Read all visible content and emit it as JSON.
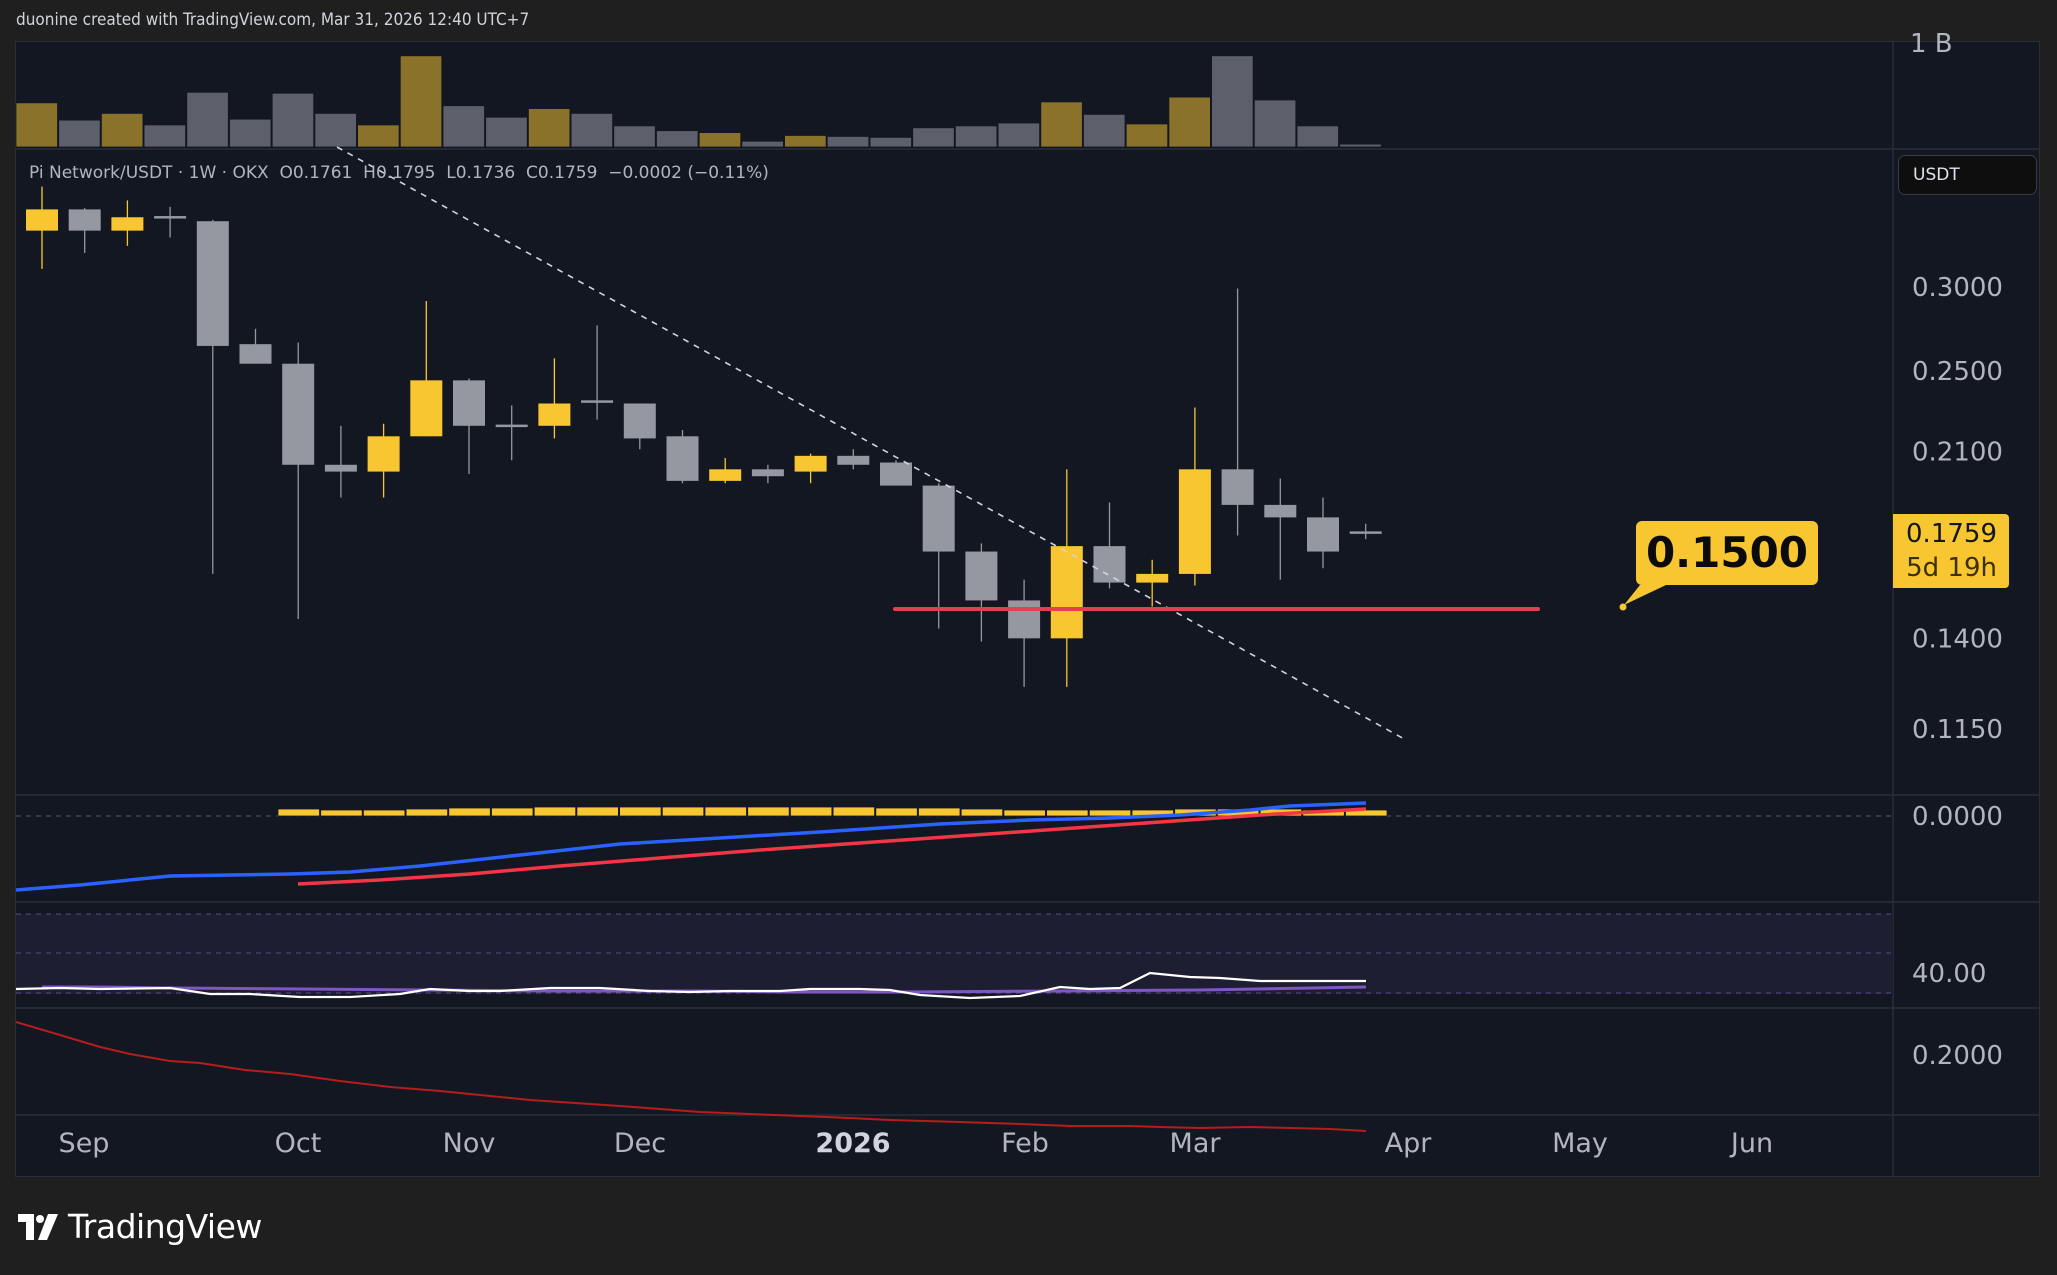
{
  "header": {
    "attribution": "duonine created with TradingView.com, Mar 31, 2026 12:40 UTC+7"
  },
  "legend": {
    "symbol": "Pi Network/USDT",
    "interval": "1W",
    "exchange": "OKX",
    "open": "O0.1761",
    "high": "H0.1795",
    "low": "L0.1736",
    "close": "C0.1759",
    "change": "−0.0002 (−0.11%)"
  },
  "currency_button": "USDT",
  "last_price": {
    "value": "0.1759",
    "countdown": "5d 19h"
  },
  "callout": {
    "text": "0.1500"
  },
  "volume_axis_label": "1 B",
  "price_axis": [
    "0.3000",
    "0.2500",
    "0.2100",
    "0.1400",
    "0.1150"
  ],
  "macd_axis": "0.0000",
  "rsi_axis": "40.00",
  "bottom_axis": "0.2000",
  "time_axis": [
    {
      "label": "Sep",
      "bold": false
    },
    {
      "label": "Oct",
      "bold": false
    },
    {
      "label": "Nov",
      "bold": false
    },
    {
      "label": "Dec",
      "bold": false
    },
    {
      "label": "2026",
      "bold": true
    },
    {
      "label": "Feb",
      "bold": false
    },
    {
      "label": "Mar",
      "bold": false
    },
    {
      "label": "Apr",
      "bold": false
    },
    {
      "label": "May",
      "bold": false
    },
    {
      "label": "Jun",
      "bold": false
    }
  ],
  "logo": "TradingView",
  "colors": {
    "up": "#f7c631",
    "down": "#9598a1",
    "up_volume": "#8a722a",
    "down_volume": "#5d606b",
    "background": "#131722",
    "support_line": "#e0404f",
    "macd_line": "#2962ff",
    "signal_line": "#f23645",
    "rsi_line": "#ffffff",
    "rsi_ma": "#7e57c2",
    "bottom_line": "#b71c1c"
  },
  "chart_data": {
    "type": "candlestick",
    "title": "Pi Network/USDT · 1W · OKX",
    "xlabel": "",
    "ylabel": "USDT",
    "y_scale": "log",
    "ylim": [
      0.105,
      0.34
    ],
    "x_ticks": [
      "Sep",
      "Oct",
      "Nov",
      "Dec",
      "2026",
      "Feb",
      "Mar",
      "Apr",
      "May",
      "Jun"
    ],
    "y_ticks": [
      0.3,
      0.25,
      0.21,
      0.14,
      0.115
    ],
    "candles": [
      {
        "o": 0.339,
        "h": 0.373,
        "l": 0.312,
        "c": 0.355,
        "dir": "up"
      },
      {
        "o": 0.355,
        "h": 0.356,
        "l": 0.323,
        "c": 0.339,
        "dir": "down"
      },
      {
        "o": 0.339,
        "h": 0.362,
        "l": 0.328,
        "c": 0.349,
        "dir": "up"
      },
      {
        "o": 0.349,
        "h": 0.357,
        "l": 0.334,
        "c": 0.348,
        "dir": "down"
      },
      {
        "o": 0.346,
        "h": 0.347,
        "l": 0.161,
        "c": 0.264,
        "dir": "down"
      },
      {
        "o": 0.265,
        "h": 0.274,
        "l": 0.256,
        "c": 0.254,
        "dir": "down"
      },
      {
        "o": 0.254,
        "h": 0.266,
        "l": 0.146,
        "c": 0.204,
        "dir": "down"
      },
      {
        "o": 0.204,
        "h": 0.222,
        "l": 0.19,
        "c": 0.201,
        "dir": "down"
      },
      {
        "o": 0.201,
        "h": 0.223,
        "l": 0.19,
        "c": 0.217,
        "dir": "up"
      },
      {
        "o": 0.217,
        "h": 0.291,
        "l": 0.217,
        "c": 0.245,
        "dir": "up"
      },
      {
        "o": 0.245,
        "h": 0.246,
        "l": 0.2,
        "c": 0.222,
        "dir": "down"
      },
      {
        "o": 0.222,
        "h": 0.232,
        "l": 0.206,
        "c": 0.221,
        "dir": "down"
      },
      {
        "o": 0.222,
        "h": 0.257,
        "l": 0.216,
        "c": 0.233,
        "dir": "up"
      },
      {
        "o": 0.234,
        "h": 0.276,
        "l": 0.225,
        "c": 0.233,
        "dir": "down"
      },
      {
        "o": 0.233,
        "h": 0.233,
        "l": 0.211,
        "c": 0.216,
        "dir": "down"
      },
      {
        "o": 0.217,
        "h": 0.22,
        "l": 0.196,
        "c": 0.197,
        "dir": "down"
      },
      {
        "o": 0.197,
        "h": 0.207,
        "l": 0.196,
        "c": 0.202,
        "dir": "up"
      },
      {
        "o": 0.202,
        "h": 0.204,
        "l": 0.196,
        "c": 0.199,
        "dir": "down"
      },
      {
        "o": 0.201,
        "h": 0.209,
        "l": 0.196,
        "c": 0.208,
        "dir": "up"
      },
      {
        "o": 0.208,
        "h": 0.211,
        "l": 0.202,
        "c": 0.204,
        "dir": "down"
      },
      {
        "o": 0.205,
        "h": 0.206,
        "l": 0.195,
        "c": 0.195,
        "dir": "down"
      },
      {
        "o": 0.195,
        "h": 0.196,
        "l": 0.143,
        "c": 0.169,
        "dir": "down"
      },
      {
        "o": 0.169,
        "h": 0.172,
        "l": 0.139,
        "c": 0.152,
        "dir": "down"
      },
      {
        "o": 0.152,
        "h": 0.159,
        "l": 0.126,
        "c": 0.14,
        "dir": "down"
      },
      {
        "o": 0.14,
        "h": 0.202,
        "l": 0.126,
        "c": 0.171,
        "dir": "up"
      },
      {
        "o": 0.171,
        "h": 0.188,
        "l": 0.156,
        "c": 0.158,
        "dir": "down"
      },
      {
        "o": 0.158,
        "h": 0.166,
        "l": 0.15,
        "c": 0.161,
        "dir": "up"
      },
      {
        "o": 0.161,
        "h": 0.231,
        "l": 0.157,
        "c": 0.202,
        "dir": "up"
      },
      {
        "o": 0.202,
        "h": 0.299,
        "l": 0.175,
        "c": 0.187,
        "dir": "down"
      },
      {
        "o": 0.187,
        "h": 0.198,
        "l": 0.159,
        "c": 0.182,
        "dir": "down"
      },
      {
        "o": 0.182,
        "h": 0.19,
        "l": 0.163,
        "c": 0.169,
        "dir": "down"
      },
      {
        "o": 0.1761,
        "h": 0.1795,
        "l": 0.1736,
        "c": 0.1759,
        "dir": "down"
      }
    ],
    "volume_relative": [
      0.46,
      0.28,
      0.35,
      0.23,
      0.57,
      0.29,
      0.56,
      0.35,
      0.23,
      0.95,
      0.43,
      0.31,
      0.4,
      0.35,
      0.22,
      0.17,
      0.15,
      0.06,
      0.12,
      0.11,
      0.1,
      0.2,
      0.22,
      0.25,
      0.47,
      0.34,
      0.24,
      0.52,
      0.95,
      0.49,
      0.22,
      0.03
    ],
    "volume_direction": [
      "up",
      "down",
      "up",
      "down",
      "down",
      "down",
      "down",
      "down",
      "up",
      "up",
      "down",
      "down",
      "up",
      "down",
      "down",
      "down",
      "up",
      "down",
      "up",
      "down",
      "down",
      "down",
      "down",
      "down",
      "up",
      "down",
      "up",
      "up",
      "down",
      "down",
      "down",
      "down"
    ],
    "annotations": [
      {
        "type": "horizontal_line",
        "price": 0.15,
        "color": "#e0404f",
        "label": "0.1500"
      },
      {
        "type": "trendline_dashed",
        "from": "early Sep (~0.38)",
        "to": "late Mar (~0.112)"
      }
    ],
    "last_price": 0.1759,
    "indicators": [
      {
        "name": "MACD",
        "axis_tick": "0.0000"
      },
      {
        "name": "RSI",
        "axis_tick": "40.00"
      },
      {
        "name": "Declining line",
        "axis_tick": "0.2000"
      }
    ]
  }
}
